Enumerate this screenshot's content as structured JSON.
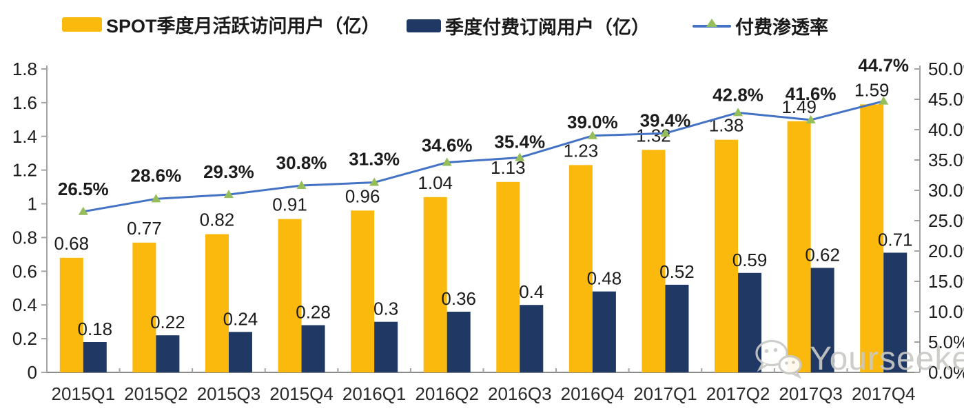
{
  "legend": {
    "items": [
      {
        "label": "SPOT季度月活跃访问用户（亿）",
        "color": "#FBB90E",
        "type": "bar"
      },
      {
        "label": "季度付费订阅用户（亿）",
        "color": "#1F3864",
        "type": "bar"
      },
      {
        "label": "付费渗透率",
        "color": "#4472C4",
        "marker_color": "#95BE5A",
        "type": "line"
      }
    ]
  },
  "watermark": {
    "text": "Yourseeker",
    "icon": "wechat-icon"
  },
  "chart_data": {
    "type": "combo-bar-line",
    "title": "",
    "xlabel": "",
    "ylabel": "",
    "grid": false,
    "legend_position": "top",
    "categories": [
      "2015Q1",
      "2015Q2",
      "2015Q3",
      "2015Q4",
      "2016Q1",
      "2016Q2",
      "2016Q3",
      "2016Q4",
      "2017Q1",
      "2017Q2",
      "2017Q3",
      "2017Q4"
    ],
    "series": [
      {
        "name": "SPOT季度月活跃访问用户（亿）",
        "type": "bar",
        "y_axis": "left",
        "color": "#FBB90E",
        "values": [
          0.68,
          0.77,
          0.82,
          0.91,
          0.96,
          1.04,
          1.13,
          1.23,
          1.32,
          1.38,
          1.49,
          1.59
        ],
        "labels": [
          "0.68",
          "0.77",
          "0.82",
          "0.91",
          "0.96",
          "1.04",
          "1.13",
          "1.23",
          "1.32",
          "1.38",
          "1.49",
          "1.59"
        ]
      },
      {
        "name": "季度付费订阅用户（亿）",
        "type": "bar",
        "y_axis": "left",
        "color": "#1F3864",
        "values": [
          0.18,
          0.22,
          0.24,
          0.28,
          0.3,
          0.36,
          0.4,
          0.48,
          0.52,
          0.59,
          0.62,
          0.71
        ],
        "labels": [
          "0.18",
          "0.22",
          "0.24",
          "0.28",
          "0.3",
          "0.36",
          "0.4",
          "0.48",
          "0.52",
          "0.59",
          "0.62",
          "0.71"
        ]
      },
      {
        "name": "付费渗透率",
        "type": "line",
        "y_axis": "right",
        "color": "#4472C4",
        "marker": "triangle",
        "marker_color": "#95BE5A",
        "values": [
          26.5,
          28.6,
          29.3,
          30.8,
          31.3,
          34.6,
          35.4,
          39.0,
          39.4,
          42.8,
          41.6,
          44.7
        ],
        "labels": [
          "26.5%",
          "28.6%",
          "29.3%",
          "30.8%",
          "31.3%",
          "34.6%",
          "35.4%",
          "39.0%",
          "39.4%",
          "42.8%",
          "41.6%",
          "44.7%"
        ]
      }
    ],
    "left_axis": {
      "min": 0,
      "max": 1.8,
      "tick_labels": [
        "0",
        "0.2",
        "0.4",
        "0.6",
        "0.8",
        "1",
        "1.2",
        "1.4",
        "1.6",
        "1.8"
      ]
    },
    "right_axis": {
      "min": 0,
      "max": 50,
      "tick_labels": [
        "0.0%",
        "5.0%",
        "10.0%",
        "15.0%",
        "20.0%",
        "25.0%",
        "30.0%",
        "35.0%",
        "40.0%",
        "45.0%",
        "50.0%"
      ]
    }
  }
}
